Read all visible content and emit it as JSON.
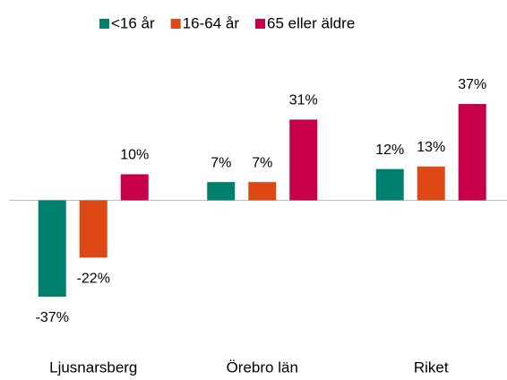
{
  "chart_data": {
    "type": "bar",
    "categories": [
      "Ljusnarsberg",
      "Örebro län",
      "Riket"
    ],
    "series": [
      {
        "name": "<16 år",
        "color": "#00816d",
        "values": [
          -37,
          7,
          12
        ],
        "value_labels": [
          "-37%",
          "7%",
          "12%"
        ]
      },
      {
        "name": "16-64 år",
        "color": "#dd4814",
        "values": [
          -22,
          7,
          13
        ],
        "value_labels": [
          "-22%",
          "7%",
          "13%"
        ]
      },
      {
        "name": "65 eller äldre",
        "color": "#c8004a",
        "values": [
          10,
          31,
          37
        ],
        "value_labels": [
          "10%",
          "31%",
          "37%"
        ]
      }
    ],
    "legend": "top"
  }
}
